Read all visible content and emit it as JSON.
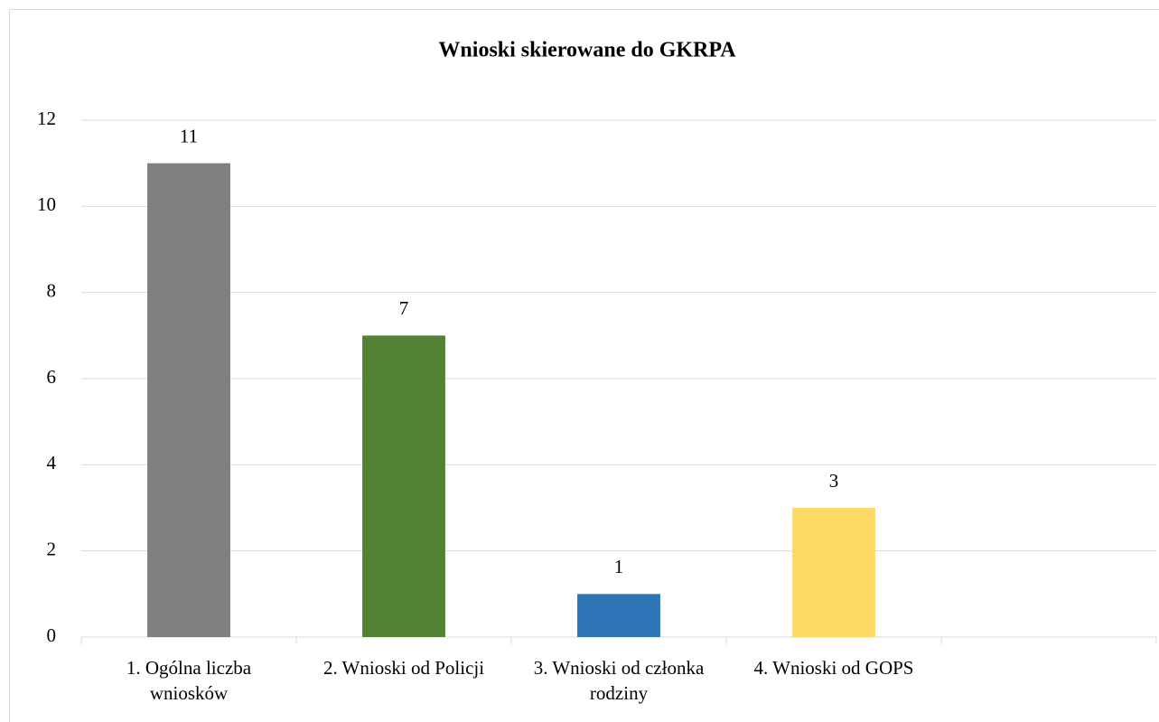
{
  "chart_data": {
    "type": "bar",
    "title": "Wnioski skierowane do GKRPA",
    "categories": [
      "1. Ogólna liczba wniosków",
      "2. Wnioski od Policji",
      "3. Wnioski od członka rodziny",
      "4. Wnioski od GOPS",
      null
    ],
    "values": [
      11,
      7,
      1,
      3,
      null
    ],
    "colors": [
      "#7f7f7f",
      "#548235",
      "#2e75b6",
      "#ffd966",
      null
    ],
    "ylim": [
      0,
      12
    ],
    "yticks": [
      0,
      2,
      4,
      6,
      8,
      10,
      12
    ],
    "grid": true
  }
}
